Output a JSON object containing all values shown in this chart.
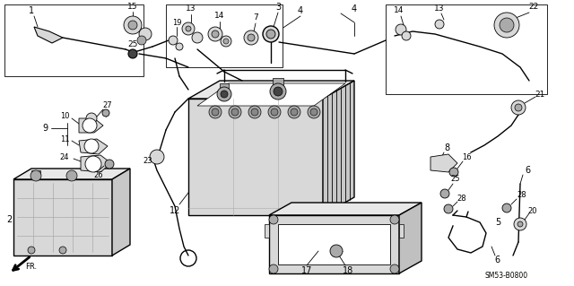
{
  "background_color": "#ffffff",
  "line_color": "#000000",
  "watermark": "SM53-B0800",
  "figsize": [
    6.4,
    3.19
  ],
  "dpi": 100,
  "gray_fill": "#d8d8d8",
  "mid_gray": "#aaaaaa",
  "dark_gray": "#444444"
}
